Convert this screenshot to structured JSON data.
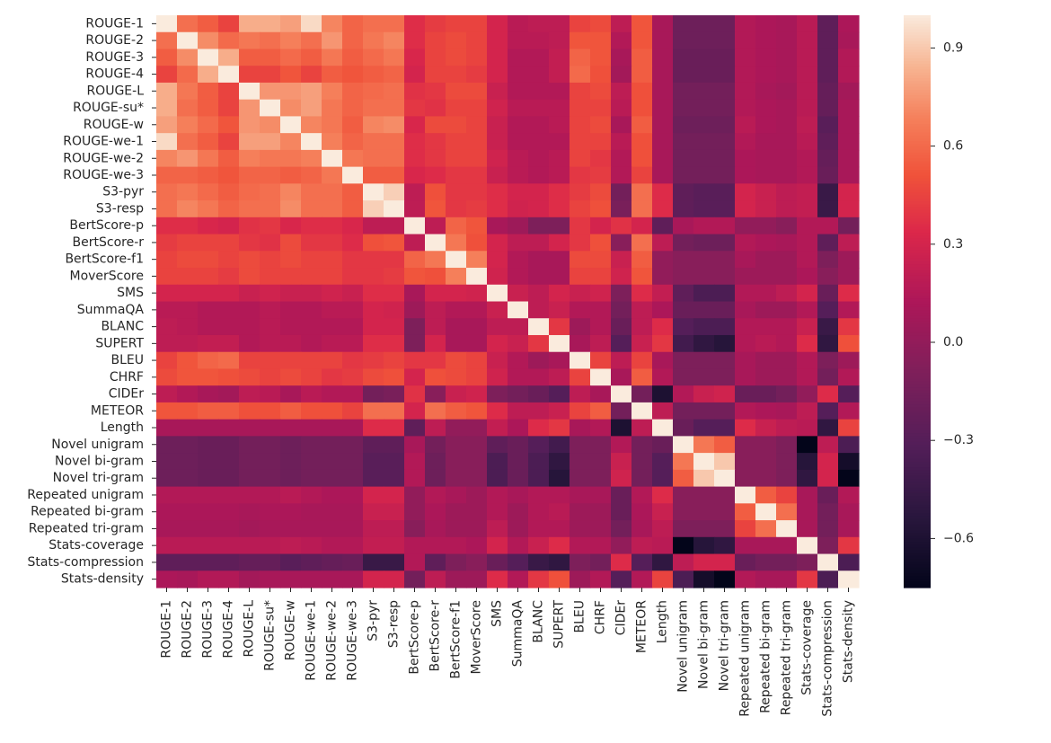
{
  "chart_data": {
    "type": "heatmap",
    "title": "",
    "xlabel": "",
    "ylabel": "",
    "labels": [
      "ROUGE-1",
      "ROUGE-2",
      "ROUGE-3",
      "ROUGE-4",
      "ROUGE-L",
      "ROUGE-su*",
      "ROUGE-w",
      "ROUGE-we-1",
      "ROUGE-we-2",
      "ROUGE-we-3",
      "S3-pyr",
      "S3-resp",
      "BertScore-p",
      "BertScore-r",
      "BertScore-f1",
      "MoverScore",
      "SMS",
      "SummaQA",
      "BLANC",
      "SUPERT",
      "BLEU",
      "CHRF",
      "CIDEr",
      "METEOR",
      "Length",
      "Novel unigram",
      "Novel bi-gram",
      "Novel tri-gram",
      "Repeated unigram",
      "Repeated bi-gram",
      "Repeated tri-gram",
      "Stats-coverage",
      "Stats-compression",
      "Stats-density"
    ],
    "colorbar": {
      "vmin": -0.75,
      "vmax": 1.0,
      "ticks": [
        0.9,
        0.6,
        0.3,
        0.0,
        -0.3,
        -0.6
      ],
      "tick_labels": [
        "0.9",
        "0.6",
        "0.3",
        "0.0",
        "−0.3",
        "−0.6"
      ],
      "colormap": "rocket"
    },
    "values": [
      [
        1.0,
        0.62,
        0.55,
        0.45,
        0.82,
        0.82,
        0.78,
        0.95,
        0.7,
        0.58,
        0.62,
        0.62,
        0.36,
        0.42,
        0.45,
        0.45,
        0.3,
        0.18,
        0.2,
        0.2,
        0.45,
        0.48,
        0.2,
        0.52,
        0.1,
        -0.18,
        -0.18,
        -0.18,
        0.15,
        0.12,
        0.1,
        0.18,
        -0.25,
        0.12
      ],
      [
        0.62,
        1.0,
        0.72,
        0.6,
        0.65,
        0.62,
        0.68,
        0.62,
        0.75,
        0.58,
        0.65,
        0.7,
        0.36,
        0.45,
        0.48,
        0.45,
        0.3,
        0.18,
        0.18,
        0.2,
        0.52,
        0.52,
        0.15,
        0.52,
        0.1,
        -0.18,
        -0.18,
        -0.18,
        0.15,
        0.12,
        0.1,
        0.18,
        -0.25,
        0.1
      ],
      [
        0.55,
        0.72,
        1.0,
        0.82,
        0.55,
        0.55,
        0.6,
        0.55,
        0.65,
        0.55,
        0.6,
        0.65,
        0.32,
        0.45,
        0.48,
        0.45,
        0.3,
        0.15,
        0.15,
        0.22,
        0.58,
        0.52,
        0.1,
        0.55,
        0.1,
        -0.2,
        -0.2,
        -0.2,
        0.15,
        0.12,
        0.1,
        0.18,
        -0.25,
        0.15
      ],
      [
        0.45,
        0.6,
        0.82,
        1.0,
        0.45,
        0.45,
        0.52,
        0.45,
        0.55,
        0.52,
        0.55,
        0.58,
        0.3,
        0.45,
        0.45,
        0.42,
        0.3,
        0.15,
        0.15,
        0.22,
        0.6,
        0.5,
        0.08,
        0.55,
        0.1,
        -0.2,
        -0.2,
        -0.2,
        0.15,
        0.12,
        0.1,
        0.18,
        -0.25,
        0.15
      ],
      [
        0.82,
        0.65,
        0.55,
        0.45,
        1.0,
        0.75,
        0.75,
        0.78,
        0.68,
        0.58,
        0.6,
        0.62,
        0.38,
        0.4,
        0.48,
        0.48,
        0.25,
        0.15,
        0.15,
        0.15,
        0.45,
        0.48,
        0.2,
        0.5,
        0.1,
        -0.15,
        -0.15,
        -0.15,
        0.15,
        0.1,
        0.08,
        0.18,
        -0.22,
        0.08
      ],
      [
        0.82,
        0.62,
        0.55,
        0.45,
        0.75,
        1.0,
        0.72,
        0.78,
        0.65,
        0.58,
        0.62,
        0.62,
        0.4,
        0.38,
        0.45,
        0.45,
        0.28,
        0.18,
        0.18,
        0.18,
        0.45,
        0.45,
        0.18,
        0.5,
        0.1,
        -0.15,
        -0.15,
        -0.15,
        0.15,
        0.12,
        0.1,
        0.18,
        -0.22,
        0.1
      ],
      [
        0.78,
        0.68,
        0.6,
        0.52,
        0.75,
        0.72,
        1.0,
        0.7,
        0.65,
        0.55,
        0.7,
        0.72,
        0.32,
        0.48,
        0.48,
        0.45,
        0.25,
        0.15,
        0.15,
        0.18,
        0.45,
        0.48,
        0.1,
        0.55,
        0.1,
        -0.18,
        -0.18,
        -0.18,
        0.18,
        0.12,
        0.1,
        0.2,
        -0.28,
        0.1
      ],
      [
        0.95,
        0.62,
        0.55,
        0.45,
        0.78,
        0.78,
        0.7,
        1.0,
        0.68,
        0.58,
        0.62,
        0.62,
        0.36,
        0.4,
        0.45,
        0.45,
        0.25,
        0.15,
        0.15,
        0.15,
        0.45,
        0.45,
        0.18,
        0.5,
        0.1,
        -0.15,
        -0.15,
        -0.15,
        0.15,
        0.1,
        0.1,
        0.18,
        -0.25,
        0.1
      ],
      [
        0.7,
        0.75,
        0.65,
        0.55,
        0.68,
        0.65,
        0.65,
        0.68,
        1.0,
        0.65,
        0.62,
        0.62,
        0.36,
        0.4,
        0.45,
        0.45,
        0.28,
        0.18,
        0.15,
        0.18,
        0.45,
        0.4,
        0.15,
        0.5,
        0.1,
        -0.15,
        -0.15,
        -0.15,
        0.12,
        0.1,
        0.1,
        0.15,
        -0.22,
        0.1
      ],
      [
        0.58,
        0.58,
        0.55,
        0.52,
        0.58,
        0.58,
        0.55,
        0.58,
        0.65,
        1.0,
        0.55,
        0.55,
        0.32,
        0.35,
        0.4,
        0.4,
        0.25,
        0.18,
        0.15,
        0.18,
        0.4,
        0.42,
        0.15,
        0.45,
        0.1,
        -0.15,
        -0.15,
        -0.15,
        0.12,
        0.1,
        0.1,
        0.15,
        -0.2,
        0.1
      ],
      [
        0.62,
        0.65,
        0.6,
        0.55,
        0.6,
        0.62,
        0.7,
        0.62,
        0.62,
        0.55,
        1.0,
        0.92,
        0.2,
        0.5,
        0.4,
        0.4,
        0.36,
        0.3,
        0.3,
        0.36,
        0.42,
        0.48,
        -0.15,
        0.62,
        0.35,
        -0.25,
        -0.28,
        -0.28,
        0.3,
        0.25,
        0.2,
        0.22,
        -0.45,
        0.3
      ],
      [
        0.62,
        0.7,
        0.65,
        0.58,
        0.62,
        0.62,
        0.72,
        0.62,
        0.62,
        0.55,
        0.92,
        1.0,
        0.2,
        0.52,
        0.4,
        0.42,
        0.36,
        0.28,
        0.3,
        0.36,
        0.45,
        0.5,
        -0.12,
        0.62,
        0.35,
        -0.25,
        -0.28,
        -0.28,
        0.3,
        0.25,
        0.2,
        0.22,
        -0.45,
        0.3
      ],
      [
        0.36,
        0.36,
        0.32,
        0.3,
        0.38,
        0.4,
        0.32,
        0.36,
        0.36,
        0.32,
        0.2,
        0.2,
        1.0,
        0.2,
        0.58,
        0.52,
        0.1,
        0.05,
        -0.1,
        -0.1,
        0.4,
        0.3,
        0.38,
        0.3,
        -0.25,
        0.1,
        0.15,
        0.15,
        0.0,
        0.0,
        -0.05,
        0.15,
        0.15,
        -0.15
      ],
      [
        0.42,
        0.45,
        0.45,
        0.45,
        0.4,
        0.38,
        0.48,
        0.4,
        0.4,
        0.35,
        0.5,
        0.52,
        0.2,
        1.0,
        0.65,
        0.5,
        0.3,
        0.2,
        0.2,
        0.3,
        0.4,
        0.5,
        -0.05,
        0.62,
        0.2,
        -0.15,
        -0.18,
        -0.18,
        0.15,
        0.12,
        0.1,
        0.15,
        -0.25,
        0.2
      ],
      [
        0.45,
        0.48,
        0.48,
        0.45,
        0.48,
        0.45,
        0.48,
        0.45,
        0.45,
        0.4,
        0.4,
        0.4,
        0.58,
        0.65,
        1.0,
        0.68,
        0.3,
        0.15,
        0.1,
        0.1,
        0.48,
        0.48,
        0.25,
        0.55,
        0.0,
        -0.05,
        -0.05,
        -0.05,
        0.1,
        0.05,
        0.05,
        0.15,
        -0.1,
        0.05
      ],
      [
        0.45,
        0.45,
        0.45,
        0.42,
        0.48,
        0.45,
        0.45,
        0.45,
        0.45,
        0.4,
        0.4,
        0.42,
        0.52,
        0.5,
        0.68,
        1.0,
        0.28,
        0.15,
        0.1,
        0.1,
        0.45,
        0.45,
        0.28,
        0.52,
        0.0,
        -0.05,
        -0.05,
        -0.05,
        0.05,
        0.05,
        0.05,
        0.12,
        -0.05,
        0.05
      ],
      [
        0.3,
        0.3,
        0.3,
        0.3,
        0.25,
        0.28,
        0.25,
        0.25,
        0.28,
        0.25,
        0.36,
        0.36,
        0.1,
        0.3,
        0.3,
        0.28,
        1.0,
        0.25,
        0.2,
        0.3,
        0.25,
        0.28,
        -0.1,
        0.35,
        0.22,
        -0.25,
        -0.35,
        -0.35,
        0.15,
        0.15,
        0.2,
        0.3,
        -0.2,
        0.35
      ],
      [
        0.18,
        0.18,
        0.15,
        0.15,
        0.15,
        0.18,
        0.15,
        0.15,
        0.18,
        0.18,
        0.3,
        0.28,
        0.05,
        0.2,
        0.15,
        0.15,
        0.25,
        1.0,
        0.2,
        0.25,
        0.15,
        0.15,
        -0.15,
        0.2,
        0.12,
        -0.2,
        -0.2,
        -0.2,
        0.1,
        0.05,
        0.05,
        0.15,
        -0.3,
        0.15
      ],
      [
        0.2,
        0.18,
        0.15,
        0.15,
        0.15,
        0.18,
        0.15,
        0.15,
        0.15,
        0.15,
        0.3,
        0.3,
        -0.1,
        0.2,
        0.1,
        0.1,
        0.2,
        0.2,
        1.0,
        0.4,
        0.05,
        0.15,
        -0.2,
        0.2,
        0.35,
        -0.3,
        -0.35,
        -0.35,
        0.15,
        0.15,
        0.15,
        0.25,
        -0.45,
        0.4
      ],
      [
        0.2,
        0.2,
        0.22,
        0.22,
        0.15,
        0.18,
        0.18,
        0.15,
        0.18,
        0.18,
        0.36,
        0.36,
        -0.1,
        0.3,
        0.1,
        0.1,
        0.3,
        0.25,
        0.4,
        1.0,
        0.1,
        0.2,
        -0.3,
        0.25,
        0.4,
        -0.4,
        -0.5,
        -0.55,
        0.15,
        0.18,
        0.15,
        0.35,
        -0.5,
        0.5
      ],
      [
        0.45,
        0.52,
        0.58,
        0.6,
        0.45,
        0.45,
        0.45,
        0.45,
        0.45,
        0.4,
        0.42,
        0.45,
        0.4,
        0.4,
        0.48,
        0.45,
        0.25,
        0.15,
        0.05,
        0.1,
        1.0,
        0.45,
        0.2,
        0.45,
        0.1,
        -0.1,
        -0.1,
        -0.1,
        0.1,
        0.05,
        0.05,
        0.15,
        -0.1,
        0.05
      ],
      [
        0.48,
        0.52,
        0.52,
        0.5,
        0.48,
        0.45,
        0.48,
        0.45,
        0.4,
        0.42,
        0.48,
        0.5,
        0.3,
        0.5,
        0.48,
        0.45,
        0.28,
        0.15,
        0.15,
        0.2,
        0.45,
        1.0,
        0.1,
        0.55,
        0.15,
        -0.1,
        -0.1,
        -0.1,
        0.1,
        0.05,
        0.05,
        0.15,
        -0.15,
        0.15
      ],
      [
        0.2,
        0.15,
        0.1,
        0.08,
        0.2,
        0.18,
        0.1,
        0.18,
        0.15,
        0.15,
        -0.15,
        -0.12,
        0.38,
        -0.05,
        0.25,
        0.28,
        -0.1,
        -0.15,
        -0.2,
        -0.3,
        0.2,
        0.1,
        1.0,
        -0.15,
        -0.6,
        0.15,
        0.25,
        0.28,
        -0.2,
        -0.2,
        -0.15,
        0.0,
        0.35,
        -0.3
      ],
      [
        0.52,
        0.52,
        0.55,
        0.55,
        0.5,
        0.5,
        0.55,
        0.5,
        0.5,
        0.45,
        0.62,
        0.62,
        0.3,
        0.62,
        0.55,
        0.52,
        0.35,
        0.2,
        0.2,
        0.25,
        0.45,
        0.55,
        -0.15,
        1.0,
        0.2,
        -0.15,
        -0.15,
        -0.15,
        0.15,
        0.12,
        0.1,
        0.2,
        -0.3,
        0.15
      ],
      [
        0.1,
        0.1,
        0.1,
        0.1,
        0.1,
        0.1,
        0.1,
        0.1,
        0.1,
        0.1,
        0.35,
        0.35,
        -0.25,
        0.2,
        0.0,
        0.0,
        0.22,
        0.12,
        0.35,
        0.4,
        0.1,
        0.15,
        -0.6,
        0.2,
        1.0,
        -0.2,
        -0.3,
        -0.3,
        0.35,
        0.25,
        0.2,
        0.18,
        -0.5,
        0.45
      ],
      [
        -0.18,
        -0.18,
        -0.2,
        -0.2,
        -0.15,
        -0.15,
        -0.18,
        -0.15,
        -0.15,
        -0.15,
        -0.25,
        -0.25,
        0.1,
        -0.15,
        -0.05,
        -0.05,
        -0.25,
        -0.2,
        -0.3,
        -0.4,
        -0.1,
        -0.1,
        0.15,
        -0.15,
        -0.2,
        1.0,
        0.65,
        0.55,
        -0.05,
        -0.05,
        -0.1,
        -0.75,
        0.2,
        -0.35
      ],
      [
        -0.18,
        -0.18,
        -0.2,
        -0.2,
        -0.15,
        -0.15,
        -0.18,
        -0.15,
        -0.15,
        -0.15,
        -0.28,
        -0.28,
        0.15,
        -0.18,
        -0.05,
        -0.05,
        -0.35,
        -0.2,
        -0.35,
        -0.5,
        -0.1,
        -0.1,
        0.25,
        -0.15,
        -0.3,
        0.65,
        1.0,
        0.9,
        -0.05,
        -0.05,
        -0.1,
        -0.55,
        0.3,
        -0.65
      ],
      [
        -0.18,
        -0.18,
        -0.2,
        -0.2,
        -0.15,
        -0.15,
        -0.18,
        -0.15,
        -0.15,
        -0.15,
        -0.28,
        -0.28,
        0.15,
        -0.18,
        -0.05,
        -0.05,
        -0.35,
        -0.2,
        -0.35,
        -0.55,
        -0.1,
        -0.1,
        0.28,
        -0.15,
        -0.3,
        0.55,
        0.9,
        1.0,
        -0.05,
        -0.05,
        -0.1,
        -0.5,
        0.3,
        -0.75
      ],
      [
        0.15,
        0.15,
        0.15,
        0.15,
        0.15,
        0.15,
        0.18,
        0.15,
        0.12,
        0.12,
        0.3,
        0.3,
        0.0,
        0.15,
        0.1,
        0.05,
        0.15,
        0.1,
        0.15,
        0.15,
        0.1,
        0.1,
        -0.2,
        0.15,
        0.35,
        -0.05,
        -0.05,
        -0.05,
        1.0,
        0.55,
        0.45,
        0.1,
        -0.2,
        0.15
      ],
      [
        0.12,
        0.12,
        0.12,
        0.12,
        0.1,
        0.12,
        0.12,
        0.1,
        0.1,
        0.1,
        0.25,
        0.25,
        0.0,
        0.12,
        0.05,
        0.05,
        0.15,
        0.05,
        0.15,
        0.18,
        0.05,
        0.05,
        -0.2,
        0.12,
        0.25,
        -0.05,
        -0.05,
        -0.05,
        0.55,
        1.0,
        0.62,
        0.1,
        -0.15,
        0.1
      ],
      [
        0.1,
        0.1,
        0.1,
        0.1,
        0.08,
        0.1,
        0.1,
        0.1,
        0.1,
        0.1,
        0.2,
        0.2,
        -0.05,
        0.1,
        0.05,
        0.05,
        0.2,
        0.05,
        0.15,
        0.15,
        0.05,
        0.05,
        -0.15,
        0.1,
        0.2,
        -0.1,
        -0.1,
        -0.1,
        0.45,
        0.62,
        1.0,
        0.1,
        -0.15,
        0.1
      ],
      [
        0.18,
        0.18,
        0.18,
        0.18,
        0.18,
        0.18,
        0.2,
        0.18,
        0.15,
        0.15,
        0.22,
        0.22,
        0.15,
        0.15,
        0.15,
        0.12,
        0.3,
        0.15,
        0.25,
        0.35,
        0.15,
        0.15,
        0.0,
        0.2,
        0.18,
        -0.75,
        -0.55,
        -0.5,
        0.1,
        0.1,
        0.1,
        1.0,
        -0.1,
        0.4
      ],
      [
        -0.25,
        -0.25,
        -0.25,
        -0.25,
        -0.22,
        -0.22,
        -0.28,
        -0.25,
        -0.22,
        -0.2,
        -0.45,
        -0.45,
        0.15,
        -0.25,
        -0.1,
        -0.05,
        -0.2,
        -0.3,
        -0.45,
        -0.5,
        -0.1,
        -0.15,
        0.35,
        -0.3,
        -0.5,
        0.2,
        0.3,
        0.3,
        -0.2,
        -0.15,
        -0.15,
        -0.1,
        1.0,
        -0.35
      ],
      [
        0.12,
        0.1,
        0.15,
        0.15,
        0.08,
        0.1,
        0.1,
        0.1,
        0.1,
        0.1,
        0.3,
        0.3,
        -0.15,
        0.2,
        0.05,
        0.05,
        0.35,
        0.15,
        0.4,
        0.5,
        0.05,
        0.15,
        -0.3,
        0.15,
        0.45,
        -0.35,
        -0.65,
        -0.75,
        0.15,
        0.1,
        0.1,
        0.4,
        -0.35,
        1.0
      ]
    ]
  }
}
